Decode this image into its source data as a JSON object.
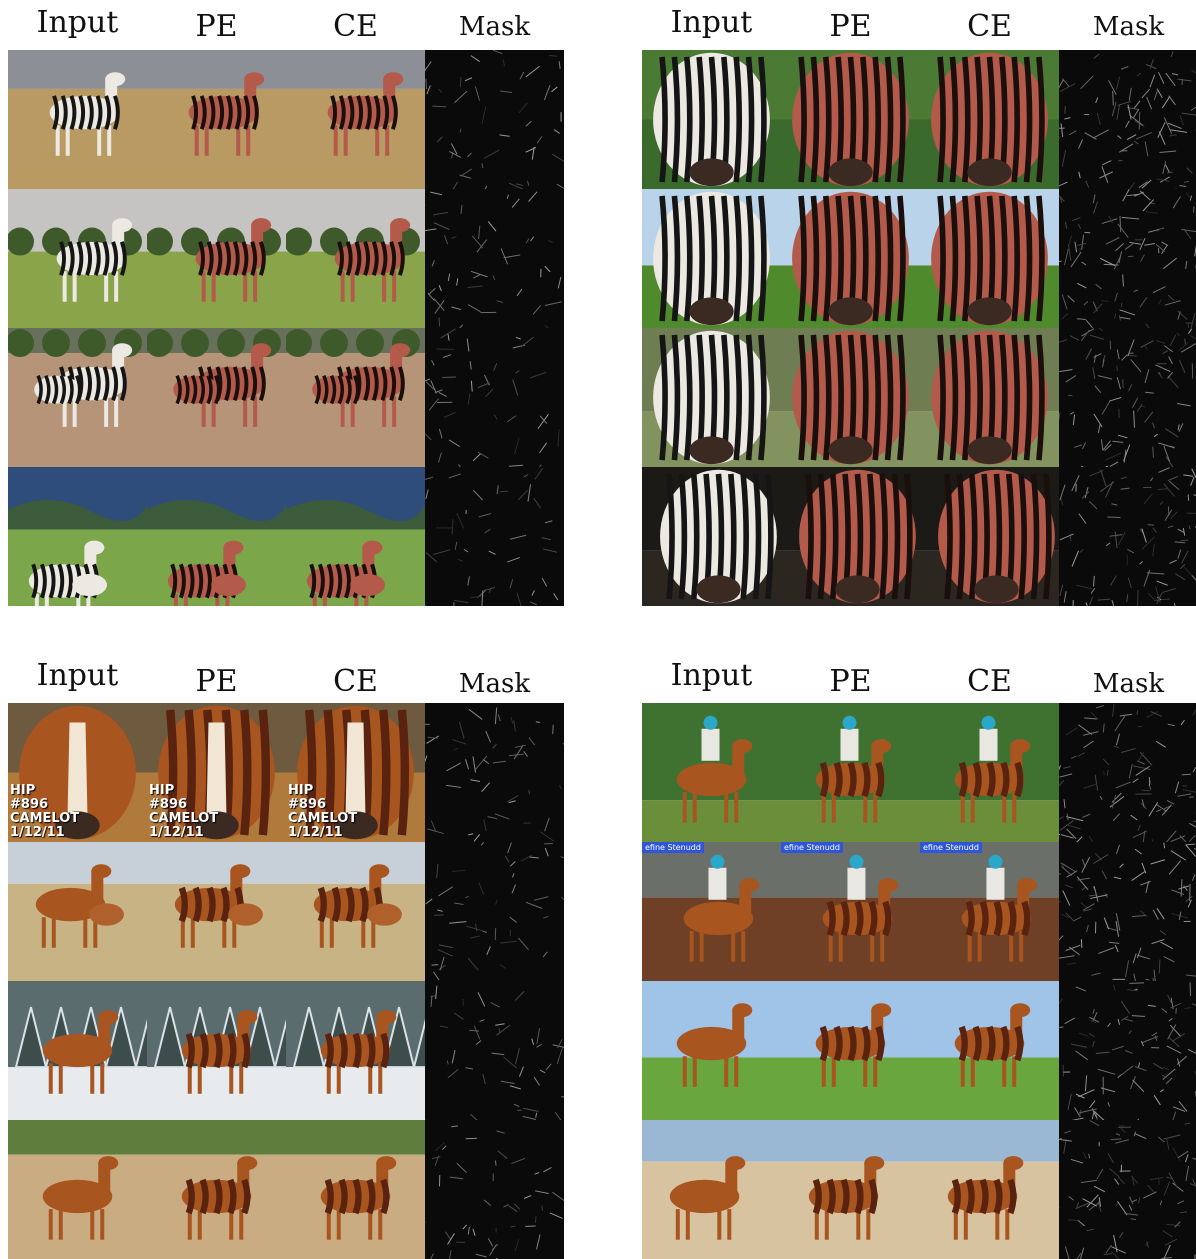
{
  "panels": [
    {
      "id": "zebra-full",
      "headers": [
        "Input",
        "PE",
        "CE",
        "Mask"
      ],
      "rows": [
        {
          "scene": "zebra-savanna"
        },
        {
          "scene": "zebra-grass-trees"
        },
        {
          "scene": "zebra-herd-bush"
        },
        {
          "scene": "zebra-foal-meadow"
        }
      ]
    },
    {
      "id": "zebra-closeup",
      "headers": [
        "Input",
        "PE",
        "CE",
        "Mask"
      ],
      "rows": [
        {
          "scene": "zebra-head-stripes"
        },
        {
          "scene": "zebra-face-front"
        },
        {
          "scene": "zebra-face-blur"
        },
        {
          "scene": "zebra-head-dark"
        }
      ]
    },
    {
      "id": "horse-a",
      "headers": [
        "Input",
        "PE",
        "CE",
        "Mask"
      ],
      "rows": [
        {
          "scene": "chestnut-horse-face",
          "overlay": [
            "HIP",
            "#896",
            "CAMELOT",
            "1/12/11"
          ]
        },
        {
          "scene": "mare-and-foal"
        },
        {
          "scene": "horse-in-snow"
        },
        {
          "scene": "horse-galloping"
        }
      ]
    },
    {
      "id": "horse-b",
      "headers": [
        "Input",
        "PE",
        "CE",
        "Mask"
      ],
      "rows": [
        {
          "scene": "rider-on-horse"
        },
        {
          "scene": "jockey-racehorse",
          "tag": "efine Stenudd"
        },
        {
          "scene": "horse-standing-profile"
        },
        {
          "scene": "horse-running-arena"
        }
      ]
    }
  ],
  "colors": {
    "background": "#ffffff",
    "mask_bg": "#0a0a0a",
    "header_text": "#111111"
  }
}
